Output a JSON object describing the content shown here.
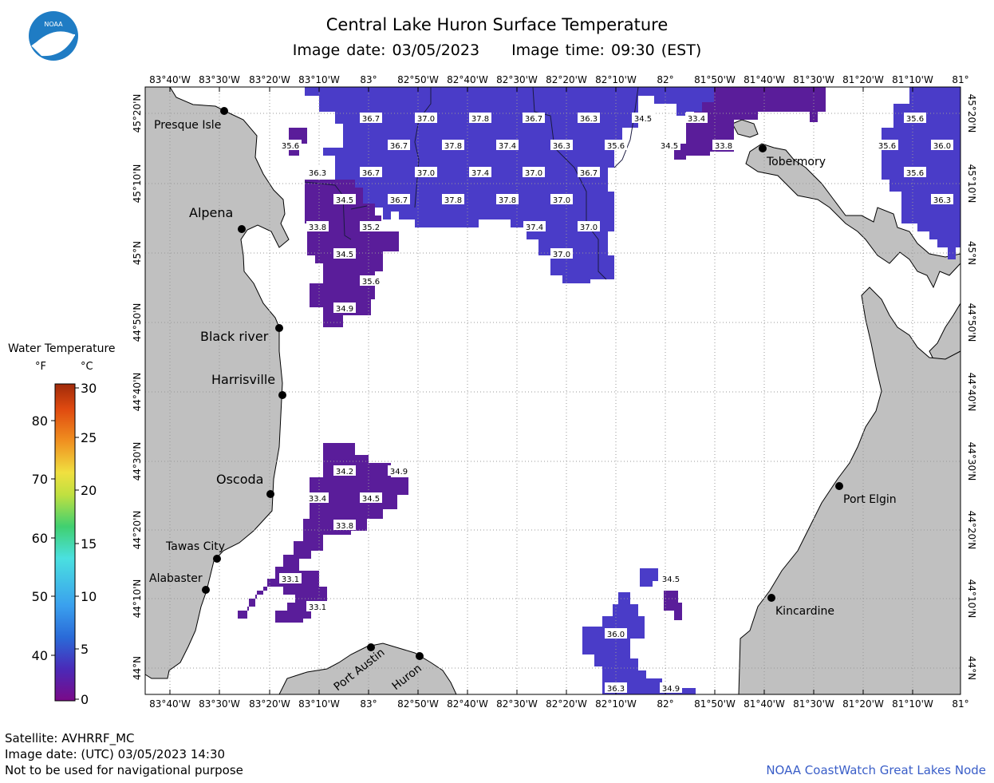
{
  "header": {
    "title": "Central Lake Huron Surface Temperature",
    "image_date": "Image date: 03/05/2023",
    "image_time": "Image time: 09:30 (EST)"
  },
  "logo": {
    "text": "NOAA",
    "color": "#1f7cc4"
  },
  "axes": {
    "lon_labels": [
      "83°40'W",
      "83°30'W",
      "83°20'W",
      "83°10'W",
      "83°",
      "82°50'W",
      "82°40'W",
      "82°30'W",
      "82°20'W",
      "82°10'W",
      "82°",
      "81°50'W",
      "81°40'W",
      "81°30'W",
      "81°20'W",
      "81°10'W",
      "81°"
    ],
    "lat_labels": [
      "45°20'N",
      "45°10'N",
      "45°N",
      "44°50'N",
      "44°40'N",
      "44°30'N",
      "44°20'N",
      "44°10'N",
      "44°N"
    ]
  },
  "cities": [
    {
      "name": "Presque Isle"
    },
    {
      "name": "Alpena"
    },
    {
      "name": "Black river"
    },
    {
      "name": "Harrisville"
    },
    {
      "name": "Oscoda"
    },
    {
      "name": "Tawas City"
    },
    {
      "name": "Alabaster"
    },
    {
      "name": "Port Austin"
    },
    {
      "name": "Huron"
    },
    {
      "name": "Tobermory"
    },
    {
      "name": "Port Elgin"
    },
    {
      "name": "Kincardine"
    }
  ],
  "temperature_labels": [
    "36.7",
    "37.0",
    "37.8",
    "36.7",
    "36.3",
    "34.5",
    "33.4",
    "35.6",
    "36.7",
    "37.8",
    "37.4",
    "36.3",
    "35.6",
    "34.5",
    "33.8",
    "36.3",
    "36.7",
    "37.0",
    "37.4",
    "37.0",
    "36.7",
    "34.5",
    "36.7",
    "37.8",
    "37.8",
    "37.0",
    "33.8",
    "35.2",
    "37.4",
    "37.0",
    "34.5",
    "37.0",
    "35.6",
    "34.9",
    "35.6",
    "35.6",
    "36.0",
    "35.6",
    "36.3",
    "34.2",
    "34.9",
    "33.4",
    "34.5",
    "33.8",
    "33.1",
    "33.1",
    "34.5",
    "36.0",
    "36.3",
    "34.9"
  ],
  "legend": {
    "title": "Water Temperature",
    "unit_f": "°F",
    "unit_c": "°C",
    "f_ticks": [
      "80",
      "70",
      "60",
      "50",
      "40"
    ],
    "c_ticks": [
      "30",
      "25",
      "20",
      "15",
      "10",
      "5",
      "0"
    ]
  },
  "footer": {
    "satellite": "Satellite: AVHRRF_MC",
    "utc_date": "Image date: (UTC) 03/05/2023  14:30",
    "disclaimer": "Not to be used for navigational purpose",
    "credit": "NOAA CoastWatch Great Lakes Node"
  },
  "colors": {
    "land": "#c0c0c0",
    "water_cold": "#5a1d9a",
    "water_mid": "#4a3cc8",
    "water_warm": "#4848d6"
  }
}
